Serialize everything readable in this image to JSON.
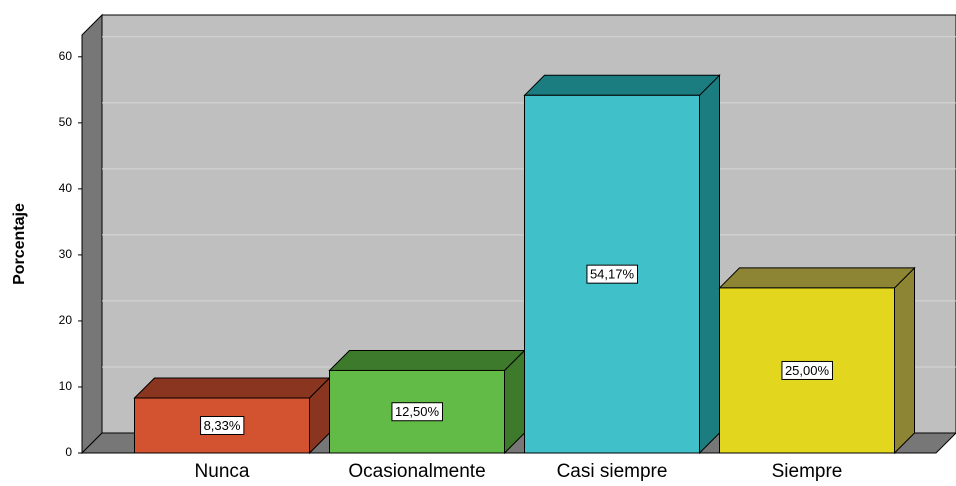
{
  "chart_data": {
    "type": "bar3d",
    "y_label": "Porcentaje",
    "categories": [
      "Nunca",
      "Ocasionalmente",
      "Casi siempre",
      "Siempre"
    ],
    "values": [
      8.33,
      12.5,
      54.17,
      25
    ],
    "value_labels": [
      "8,33%",
      "12,50%",
      "54,17%",
      "25,00%"
    ],
    "colors": [
      "#d35230",
      "#62bb46",
      "#40c0c8",
      "#e2d61e"
    ],
    "side_colors": [
      "#8a3520",
      "#3d7a2c",
      "#1b7d80",
      "#8e8534"
    ],
    "ylim": [
      0,
      63
    ],
    "yticks": [
      0,
      10,
      20,
      30,
      40,
      50,
      60
    ],
    "grid": true
  }
}
